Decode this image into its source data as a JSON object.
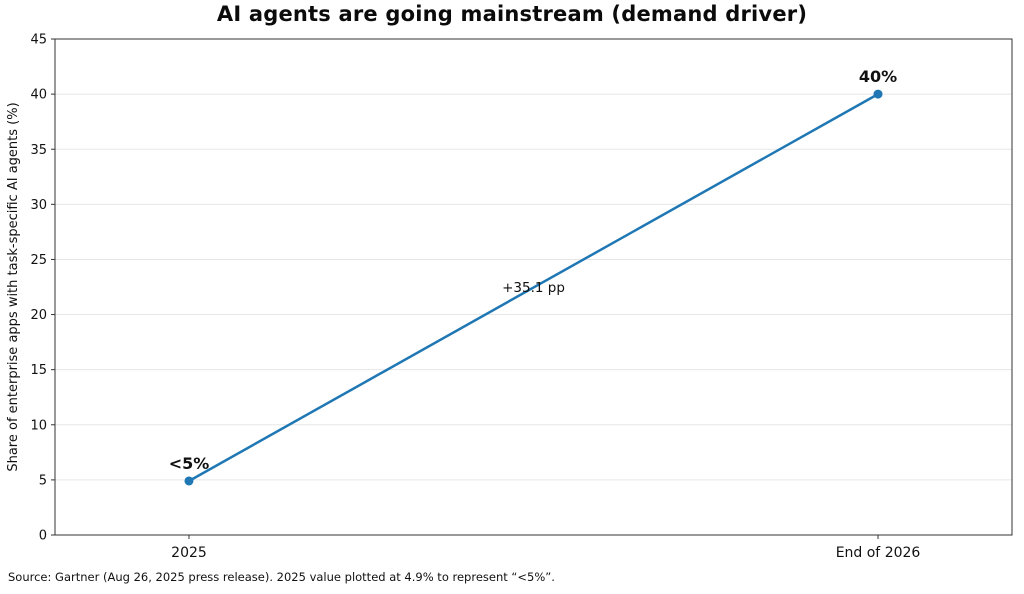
{
  "chart_data": {
    "type": "line",
    "title": "AI agents are going mainstream (demand driver)",
    "categories": [
      "2025",
      "End of 2026"
    ],
    "series": [
      {
        "name": "Share of enterprise apps with task-specific AI agents",
        "values": [
          4.9,
          40
        ]
      }
    ],
    "point_labels": [
      "<5%",
      "40%"
    ],
    "annotation": "+35.1 pp",
    "xlabel": "",
    "ylabel": "Share of enterprise apps with task-specific AI agents (%)",
    "ylim": [
      0,
      45
    ],
    "yticks": [
      0,
      5,
      10,
      15,
      20,
      25,
      30,
      35,
      40,
      45
    ],
    "grid": "horizontal-only",
    "legend": "none",
    "colors": {
      "line": "#1f77b4",
      "marker": "#1f77b4",
      "grid": "#e7e7e7",
      "spine": "#333333",
      "text": "#111111"
    }
  },
  "footer": {
    "source_note": "Source: Gartner (Aug 26, 2025 press release). 2025 value plotted at 4.9% to represent “<5%”."
  }
}
